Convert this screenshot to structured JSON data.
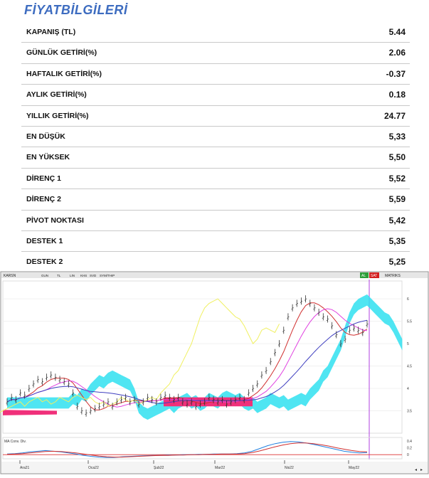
{
  "title": "FİYATBİLGİLERİ",
  "rows": [
    {
      "label": "KAPANIŞ (TL)",
      "value": "5.44"
    },
    {
      "label": "GÜNLÜK GETİRİ(%)",
      "value": "2.06"
    },
    {
      "label": "HAFTALIK GETİRİ(%)",
      "value": "-0.37"
    },
    {
      "label": "AYLIK GETİRİ(%)",
      "value": "0.18"
    },
    {
      "label": "YILLIK  GETİRİ(%)",
      "value": "24.77"
    },
    {
      "label": "EN DÜŞÜK",
      "value": "5,33"
    },
    {
      "label": "EN YÜKSEK",
      "value": "5,50"
    },
    {
      "label": "DİRENÇ 1",
      "value": "5,52"
    },
    {
      "label": "DİRENÇ 2",
      "value": "5,59"
    },
    {
      "label": "PİVOT NOKTASI",
      "value": "5,42"
    },
    {
      "label": "DESTEK 1",
      "value": "5,35"
    },
    {
      "label": "DESTEK 2",
      "value": "5,25"
    }
  ],
  "chart_toolbar": {
    "symbol": "KARSN",
    "items": [
      "GUN",
      "TL",
      "LIN",
      "KHS",
      "SVD",
      "SYM/THIP"
    ],
    "right_badges": [
      "AL",
      "SAT"
    ],
    "right_label": "MATRIKS"
  },
  "chart_data": {
    "type": "line",
    "y_ticks": [
      "6",
      "5.5",
      "5",
      "4.5",
      "4",
      "3.5"
    ],
    "y_tick_values": [
      6,
      5.5,
      5,
      4.5,
      4,
      3.5
    ],
    "x_ticks": [
      "Ara21",
      "Oca22",
      "Şub22",
      "Mar22",
      "Nis22",
      "May22"
    ],
    "ylim": [
      3.0,
      6.4
    ],
    "price": [
      3.7,
      3.8,
      3.75,
      3.9,
      3.85,
      4.0,
      4.1,
      4.2,
      4.15,
      4.25,
      4.3,
      4.25,
      4.2,
      4.15,
      4.1,
      3.9,
      3.6,
      3.5,
      3.45,
      3.5,
      3.55,
      3.6,
      3.65,
      3.7,
      3.6,
      3.7,
      3.75,
      3.8,
      3.7,
      3.75,
      3.65,
      3.7,
      3.8,
      3.75,
      3.7,
      3.8,
      3.85,
      3.8,
      3.75,
      3.8,
      3.7,
      3.65,
      3.7,
      3.6,
      3.65,
      3.7,
      3.8,
      3.75,
      3.7,
      3.75,
      3.65,
      3.7,
      3.75,
      3.8,
      3.75,
      3.9,
      4.0,
      4.1,
      4.3,
      4.4,
      4.6,
      4.8,
      5.0,
      5.3,
      5.6,
      5.8,
      5.9,
      5.95,
      6.0,
      5.9,
      5.8,
      5.7,
      5.6,
      5.55,
      5.4,
      5.2,
      5.0,
      5.1,
      5.3,
      5.35,
      5.3,
      5.25,
      5.44
    ],
    "indicator": {
      "label": "MA Conv. Div.",
      "y_ticks": [
        "0.4",
        "0.2",
        "0"
      ],
      "y_tick_values": [
        0.4,
        0.2,
        0.0
      ],
      "ylim": [
        -0.12,
        0.5
      ],
      "macd": [
        0.02,
        0.03,
        0.05,
        0.08,
        0.1,
        0.12,
        0.1,
        0.08,
        0.05,
        0.02,
        -0.02,
        -0.05,
        -0.07,
        -0.08,
        -0.08,
        -0.06,
        -0.05,
        -0.04,
        -0.03,
        -0.02,
        -0.02,
        -0.01,
        -0.01,
        0.0,
        0.0,
        0.01,
        0.01,
        0.02,
        0.02,
        0.02,
        0.03,
        0.05,
        0.1,
        0.18,
        0.26,
        0.32,
        0.36,
        0.38,
        0.37,
        0.34,
        0.3,
        0.25,
        0.2,
        0.15,
        0.1,
        0.07,
        0.05,
        0.06
      ],
      "signal": [
        0.01,
        0.02,
        0.03,
        0.05,
        0.07,
        0.09,
        0.1,
        0.09,
        0.07,
        0.05,
        0.02,
        -0.01,
        -0.04,
        -0.06,
        -0.07,
        -0.07,
        -0.06,
        -0.05,
        -0.04,
        -0.03,
        -0.02,
        -0.02,
        -0.01,
        -0.01,
        0.0,
        0.0,
        0.01,
        0.01,
        0.02,
        0.02,
        0.02,
        0.03,
        0.06,
        0.11,
        0.17,
        0.23,
        0.28,
        0.32,
        0.34,
        0.34,
        0.32,
        0.29,
        0.25,
        0.2,
        0.16,
        0.12,
        0.09,
        0.08
      ]
    }
  },
  "colors": {
    "title": "#3d6cc0",
    "price": "#333333",
    "ma_red": "#d03030",
    "ma_pink": "#e040e0",
    "ma_blue": "#4040c0",
    "lagging": "#f0f060",
    "cloud_pos": "#30e0f0",
    "cloud_neg": "#f0307a",
    "frame_border": "#8c8c8c",
    "toolbar_bg": "#e6e6e6",
    "buy_badge": "#2e9e3a",
    "sell_badge": "#d42020",
    "cursor_line": "#b040e0"
  }
}
